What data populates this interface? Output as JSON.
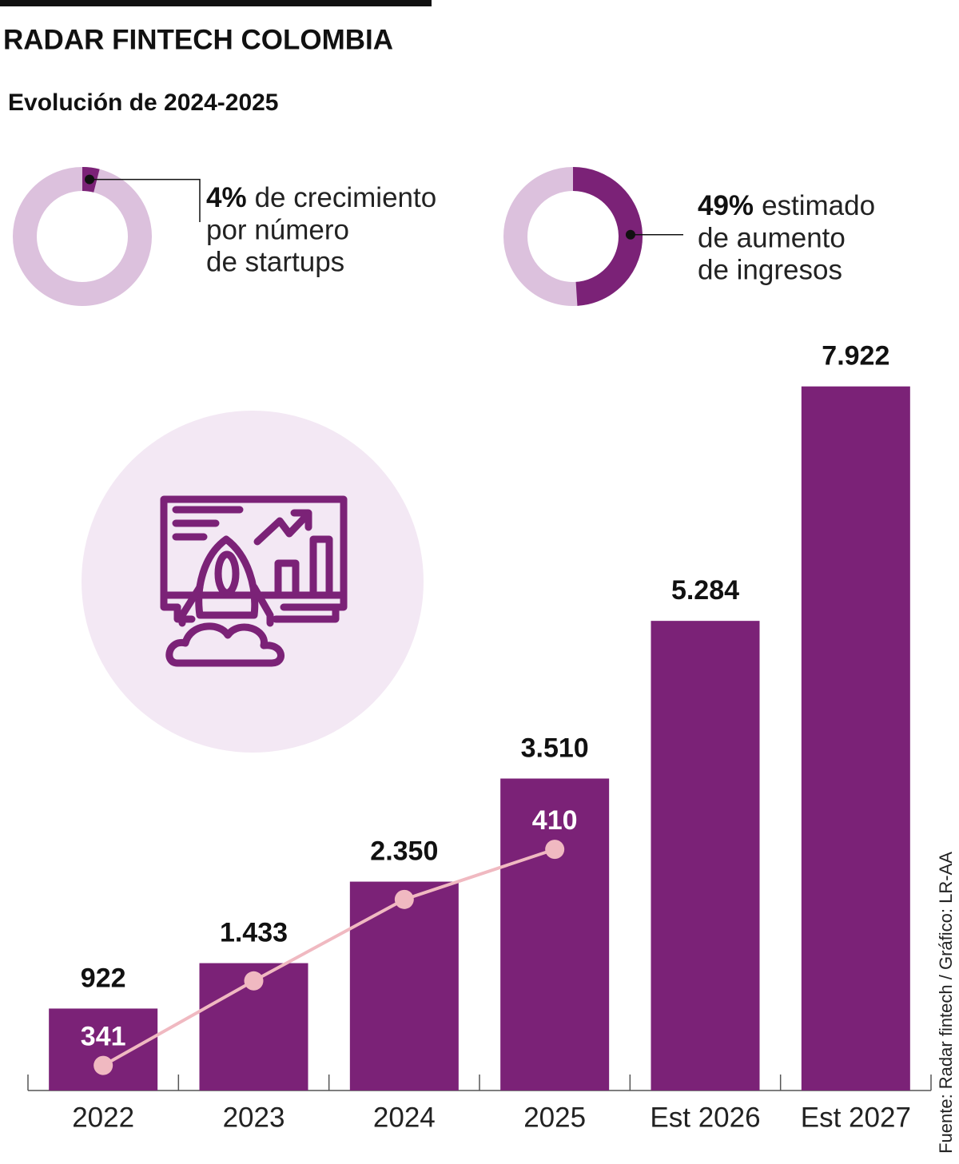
{
  "header": {
    "title": "RADAR FINTECH COLOMBIA",
    "subtitle": "Evolución de 2024-2025",
    "source": "Fuente: Radar fintech / Gráfico: LR-AA"
  },
  "chart_data": [
    {
      "type": "donut",
      "values": [
        4
      ],
      "value_labels": [
        "4%"
      ],
      "color": "#7b2277",
      "track_color": "#dcc1dd",
      "text_lines": [
        "de crecimiento",
        "por número",
        "de startups"
      ]
    },
    {
      "type": "donut",
      "values": [
        49
      ],
      "value_labels": [
        "49%"
      ],
      "color": "#7b2277",
      "track_color": "#dcc1dd",
      "text_lines": [
        "estimado",
        "de aumento",
        "de ingresos"
      ]
    },
    {
      "type": "bar",
      "categories": [
        "2022",
        "2023",
        "2024",
        "2025",
        "Est 2026",
        "Est 2027"
      ],
      "ylim": [
        0,
        8000
      ],
      "y2lim": [
        333,
        560
      ],
      "series": [
        {
          "type": "bar",
          "color": "#7b2277",
          "values": [
            922,
            1433,
            2350,
            3510,
            5284,
            7922
          ],
          "value_labels": [
            "922",
            "1.433",
            "2.350",
            "3.510",
            "5.284",
            "7.922"
          ]
        },
        {
          "type": "line",
          "axis": "y2",
          "color": "#f0b9c1",
          "values": [
            341,
            368,
            394,
            410,
            null,
            null
          ]
        }
      ]
    }
  ]
}
